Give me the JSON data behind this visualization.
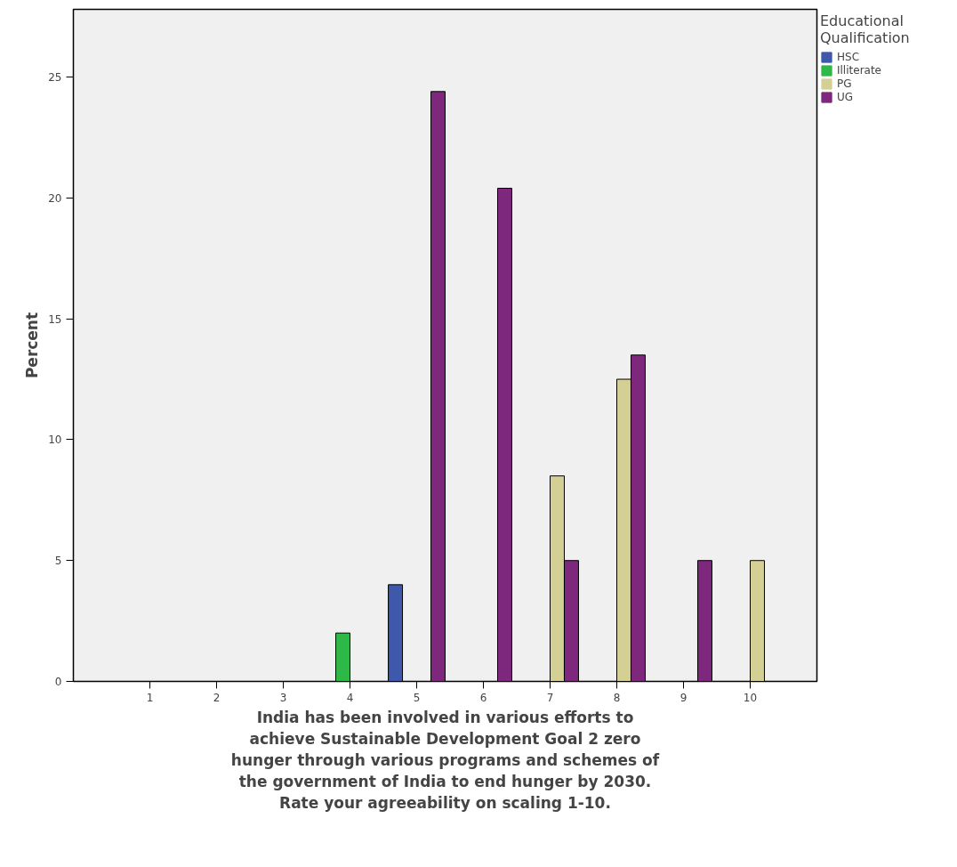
{
  "chart_data": {
    "type": "bar",
    "xlabel": "India has been involved in various efforts to achieve Sustainable Development Goal 2 zero hunger through various programs and schemes of the government of India to end hunger by 2030. Rate your agreeability on scaling 1-10.",
    "ylabel": "Percent",
    "legend_title": "Educational Qualification",
    "categories": [
      "1",
      "2",
      "3",
      "4",
      "5",
      "6",
      "7",
      "8",
      "9",
      "10"
    ],
    "series": [
      {
        "name": "HSC",
        "color": "#3e58ac",
        "values": [
          0,
          0,
          0,
          0,
          4.0,
          0,
          0,
          0,
          0,
          0
        ]
      },
      {
        "name": "Illiterate",
        "color": "#2eb848",
        "values": [
          0,
          0,
          0,
          2.0,
          0,
          0,
          0,
          0,
          0,
          0
        ]
      },
      {
        "name": "PG",
        "color": "#d4cf94",
        "values": [
          0,
          0,
          0,
          0,
          0,
          0,
          8.5,
          12.5,
          0,
          5.0
        ]
      },
      {
        "name": "UG",
        "color": "#7d287d",
        "values": [
          0,
          0,
          0,
          0,
          24.4,
          20.4,
          5.0,
          13.5,
          5.0,
          0
        ]
      }
    ],
    "ylim": [
      0,
      27.8
    ],
    "yticks": [
      0,
      5,
      10,
      15,
      20,
      25
    ],
    "grid": false,
    "legend": "right"
  }
}
